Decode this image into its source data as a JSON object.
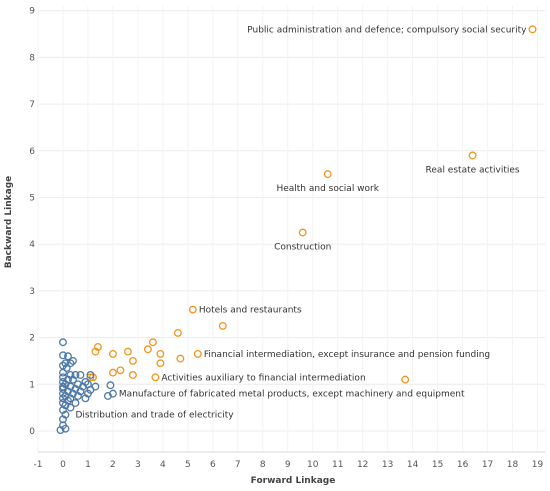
{
  "chart_data": {
    "type": "scatter",
    "title": "",
    "xlabel": "Forward Linkage",
    "ylabel": "Backward Linkage",
    "xlim": [
      -1,
      19.3
    ],
    "ylim": [
      -0.45,
      9.1
    ],
    "xticks": [
      -1,
      0,
      1,
      2,
      3,
      4,
      5,
      6,
      7,
      8,
      9,
      10,
      11,
      12,
      13,
      14,
      15,
      16,
      17,
      18,
      19
    ],
    "yticks": [
      0,
      1,
      2,
      3,
      4,
      5,
      6,
      7,
      8,
      9
    ],
    "grid": true,
    "series": [
      {
        "color": "#f0961e",
        "points": [
          {
            "x": 18.8,
            "y": 8.6
          },
          {
            "x": 16.4,
            "y": 5.9
          },
          {
            "x": 10.6,
            "y": 5.5
          },
          {
            "x": 9.6,
            "y": 4.25
          },
          {
            "x": 5.2,
            "y": 2.6
          },
          {
            "x": 6.4,
            "y": 2.25
          },
          {
            "x": 4.6,
            "y": 2.1
          },
          {
            "x": 3.6,
            "y": 1.9
          },
          {
            "x": 3.4,
            "y": 1.75
          },
          {
            "x": 2.6,
            "y": 1.7
          },
          {
            "x": 1.4,
            "y": 1.8
          },
          {
            "x": 1.3,
            "y": 1.7
          },
          {
            "x": 2.0,
            "y": 1.65
          },
          {
            "x": 3.9,
            "y": 1.65
          },
          {
            "x": 5.4,
            "y": 1.65
          },
          {
            "x": 4.7,
            "y": 1.55
          },
          {
            "x": 2.8,
            "y": 1.5
          },
          {
            "x": 3.9,
            "y": 1.45
          },
          {
            "x": 2.3,
            "y": 1.3
          },
          {
            "x": 2.0,
            "y": 1.25
          },
          {
            "x": 2.8,
            "y": 1.2
          },
          {
            "x": 1.2,
            "y": 1.15
          },
          {
            "x": 1.1,
            "y": 1.15
          },
          {
            "x": 3.7,
            "y": 1.15
          },
          {
            "x": 13.7,
            "y": 1.1
          }
        ]
      },
      {
        "color": "#4e79a7",
        "points": [
          {
            "x": 0.0,
            "y": 1.9
          },
          {
            "x": 0.0,
            "y": 1.62
          },
          {
            "x": 0.2,
            "y": 1.6
          },
          {
            "x": 0.4,
            "y": 1.5
          },
          {
            "x": 0.1,
            "y": 1.45
          },
          {
            "x": 0.3,
            "y": 1.45
          },
          {
            "x": 0.0,
            "y": 1.4
          },
          {
            "x": 0.15,
            "y": 1.35
          },
          {
            "x": 0.0,
            "y": 1.25
          },
          {
            "x": 0.3,
            "y": 1.2
          },
          {
            "x": 0.5,
            "y": 1.2
          },
          {
            "x": 0.7,
            "y": 1.2
          },
          {
            "x": 1.1,
            "y": 1.2
          },
          {
            "x": 0.0,
            "y": 1.15
          },
          {
            "x": 0.2,
            "y": 1.1
          },
          {
            "x": 0.4,
            "y": 1.1
          },
          {
            "x": 0.9,
            "y": 1.05
          },
          {
            "x": 0.0,
            "y": 1.05
          },
          {
            "x": 0.1,
            "y": 1.0
          },
          {
            "x": 0.6,
            "y": 1.0
          },
          {
            "x": 1.0,
            "y": 1.0
          },
          {
            "x": 1.9,
            "y": 0.98
          },
          {
            "x": 0.0,
            "y": 0.95
          },
          {
            "x": 0.3,
            "y": 0.95
          },
          {
            "x": 0.8,
            "y": 0.95
          },
          {
            "x": 1.3,
            "y": 0.95
          },
          {
            "x": 0.0,
            "y": 0.9
          },
          {
            "x": 0.5,
            "y": 0.9
          },
          {
            "x": 1.1,
            "y": 0.88
          },
          {
            "x": 0.2,
            "y": 0.85
          },
          {
            "x": 0.7,
            "y": 0.85
          },
          {
            "x": 0.0,
            "y": 0.8
          },
          {
            "x": 0.4,
            "y": 0.8
          },
          {
            "x": 1.0,
            "y": 0.8
          },
          {
            "x": 2.0,
            "y": 0.8
          },
          {
            "x": 1.8,
            "y": 0.75
          },
          {
            "x": 0.1,
            "y": 0.75
          },
          {
            "x": 0.6,
            "y": 0.75
          },
          {
            "x": 0.3,
            "y": 0.7
          },
          {
            "x": 0.0,
            "y": 0.7
          },
          {
            "x": 0.9,
            "y": 0.7
          },
          {
            "x": 0.2,
            "y": 0.65
          },
          {
            "x": 0.0,
            "y": 0.6
          },
          {
            "x": 0.5,
            "y": 0.6
          },
          {
            "x": 0.1,
            "y": 0.55
          },
          {
            "x": 0.3,
            "y": 0.5
          },
          {
            "x": 0.0,
            "y": 0.45
          },
          {
            "x": 0.1,
            "y": 0.35
          },
          {
            "x": 0.0,
            "y": 0.25
          },
          {
            "x": 0.0,
            "y": 0.12
          },
          {
            "x": 0.1,
            "y": 0.05
          },
          {
            "x": -0.1,
            "y": 0.02
          }
        ]
      }
    ],
    "annotations": [
      {
        "text": "Public administration and defence; compulsory social security",
        "x": 18.8,
        "y": 8.6,
        "anchor": "end",
        "dx": -6,
        "dy": 0
      },
      {
        "text": "Real estate activities",
        "x": 16.4,
        "y": 5.9,
        "anchor": "middle",
        "dx": 0,
        "dy": 14
      },
      {
        "text": "Health and social work",
        "x": 10.6,
        "y": 5.5,
        "anchor": "middle",
        "dx": 0,
        "dy": 14
      },
      {
        "text": "Construction",
        "x": 9.6,
        "y": 4.25,
        "anchor": "middle",
        "dx": 0,
        "dy": 14
      },
      {
        "text": "Hotels and restaurants",
        "x": 5.2,
        "y": 2.6,
        "anchor": "start",
        "dx": 6,
        "dy": 0
      },
      {
        "text": "Financial intermediation, except insurance and pension funding",
        "x": 5.4,
        "y": 1.65,
        "anchor": "start",
        "dx": 6,
        "dy": 0
      },
      {
        "text": "Activities auxiliary to financial intermediation",
        "x": 3.7,
        "y": 1.15,
        "anchor": "start",
        "dx": 6,
        "dy": 0
      },
      {
        "text": "Manufacture of fabricated metal products, except machinery and equipment",
        "x": 2.0,
        "y": 0.8,
        "anchor": "start",
        "dx": 6,
        "dy": 0
      },
      {
        "text": "Distribution and trade of electricity",
        "x": 0.5,
        "y": 0.35,
        "anchor": "start",
        "dx": 0,
        "dy": 0
      }
    ]
  }
}
